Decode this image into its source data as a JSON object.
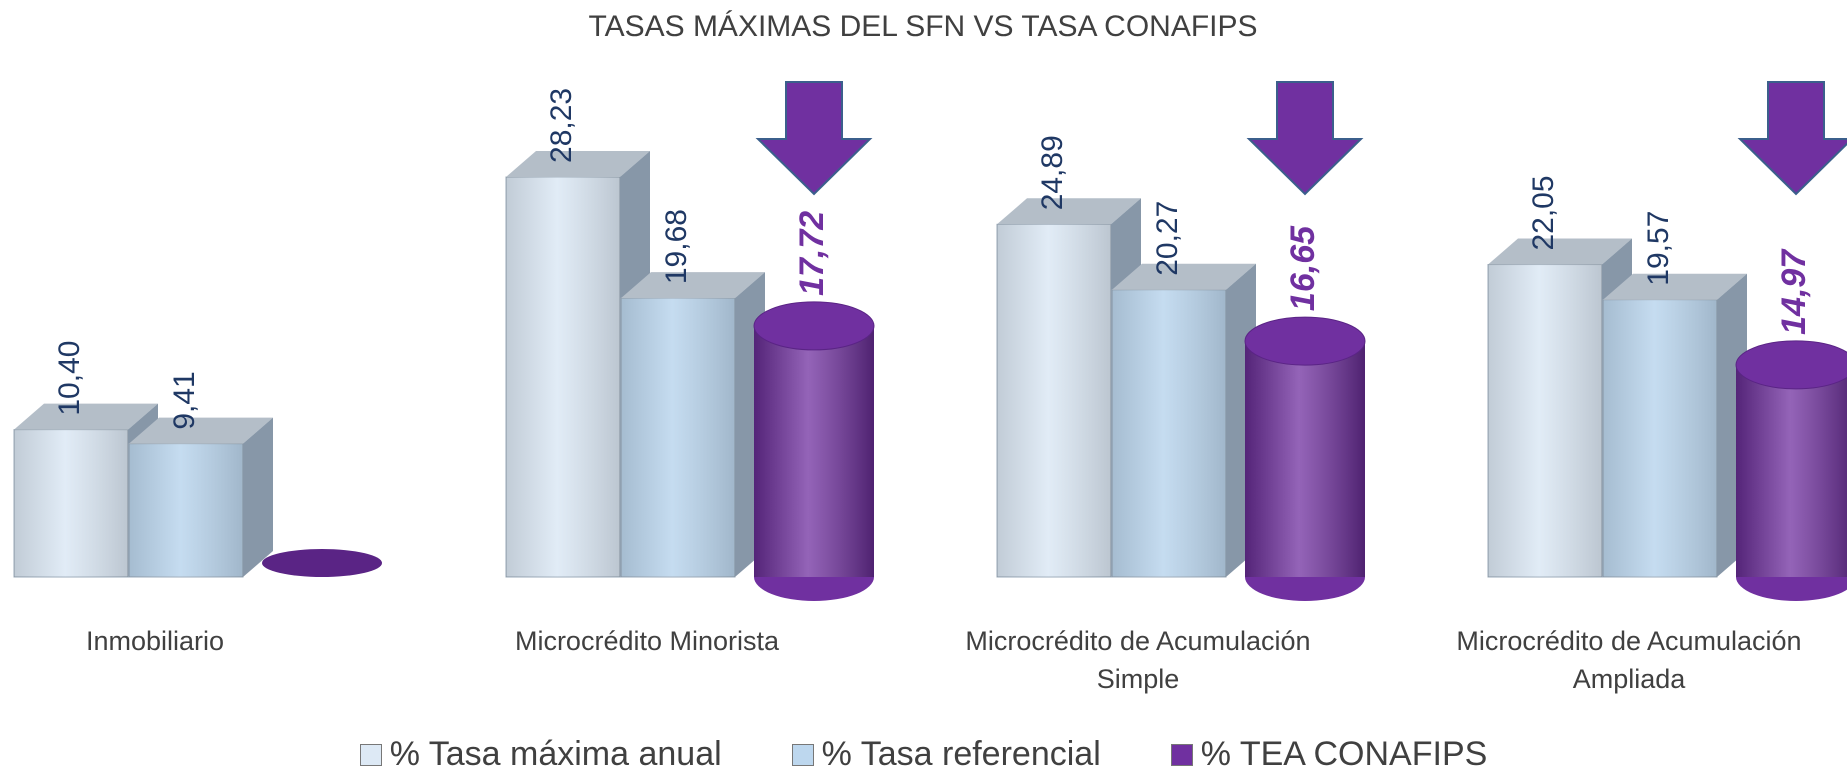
{
  "chart_data": {
    "type": "bar3d",
    "title": "TASAS MÁXIMAS DEL SFN VS TASA CONAFIPS",
    "categories": [
      "Inmobiliario",
      "Microcrédito Minorista",
      "Microcrédito de Acumulación Simple",
      "Microcrédito de Acumulación Ampliada"
    ],
    "series": [
      {
        "name": "% Tasa máxima anual",
        "color": "#dde9f5",
        "values": [
          10.4,
          28.23,
          24.89,
          22.05
        ],
        "value_labels": [
          "10,40",
          "28,23",
          "24,89",
          "22,05"
        ]
      },
      {
        "name": "% Tasa referencial",
        "color": "#bdd7ee",
        "values": [
          9.41,
          19.68,
          20.27,
          19.57
        ],
        "value_labels": [
          "9,41",
          "19,68",
          "20,27",
          "19,57"
        ]
      },
      {
        "name": "% TEA CONAFIPS",
        "color": "#7030a0",
        "values": [
          null,
          17.72,
          16.65,
          14.97
        ],
        "value_labels": [
          null,
          "17,72",
          "16,65",
          "14,97"
        ]
      }
    ],
    "legend": "bottom"
  }
}
